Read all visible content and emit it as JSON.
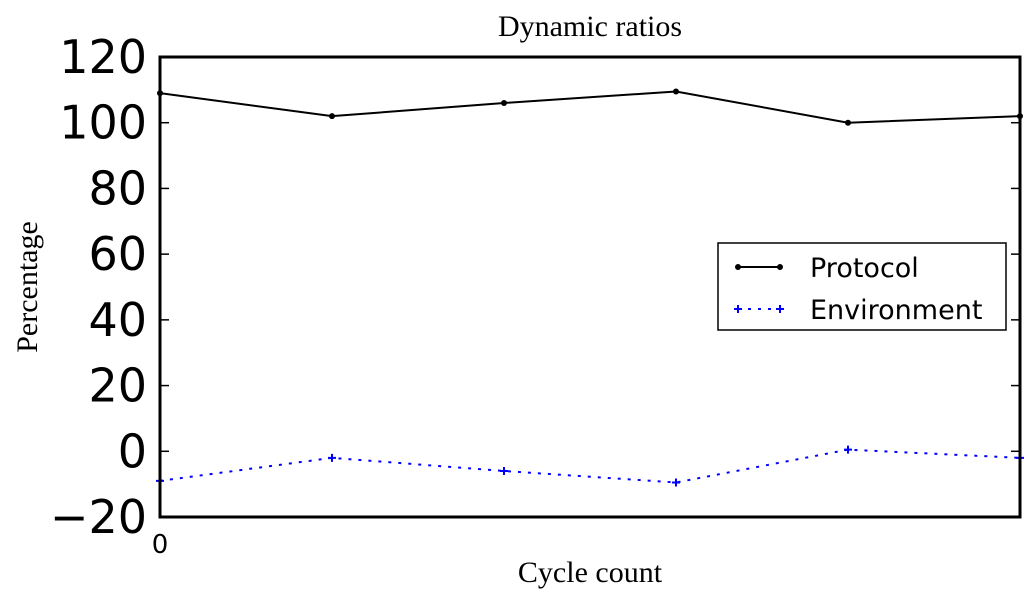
{
  "chart_data": {
    "type": "line",
    "title": "Dynamic ratios",
    "xlabel": "Cycle count",
    "ylabel": "Percentage",
    "x": [
      0,
      1,
      2,
      3,
      4,
      5
    ],
    "xlim": [
      0,
      5
    ],
    "xticks": [
      {
        "value": 0,
        "label": "0"
      }
    ],
    "ylim": [
      -20,
      120
    ],
    "yticks": [
      {
        "value": -20,
        "label": "−20"
      },
      {
        "value": 0,
        "label": "0"
      },
      {
        "value": 20,
        "label": "20"
      },
      {
        "value": 40,
        "label": "40"
      },
      {
        "value": 60,
        "label": "60"
      },
      {
        "value": 80,
        "label": "80"
      },
      {
        "value": 100,
        "label": "100"
      },
      {
        "value": 120,
        "label": "120"
      }
    ],
    "grid": false,
    "legend_position": "center-right",
    "series": [
      {
        "name": "Protocol",
        "values": [
          109,
          102,
          106,
          109.5,
          100,
          102
        ],
        "color": "#000000",
        "line_style": "solid",
        "marker": "dot"
      },
      {
        "name": "Environment",
        "values": [
          -9,
          -2,
          -6,
          -9.5,
          0.5,
          -2
        ],
        "color": "#0000ff",
        "line_style": "dotted",
        "marker": "plus"
      }
    ]
  }
}
